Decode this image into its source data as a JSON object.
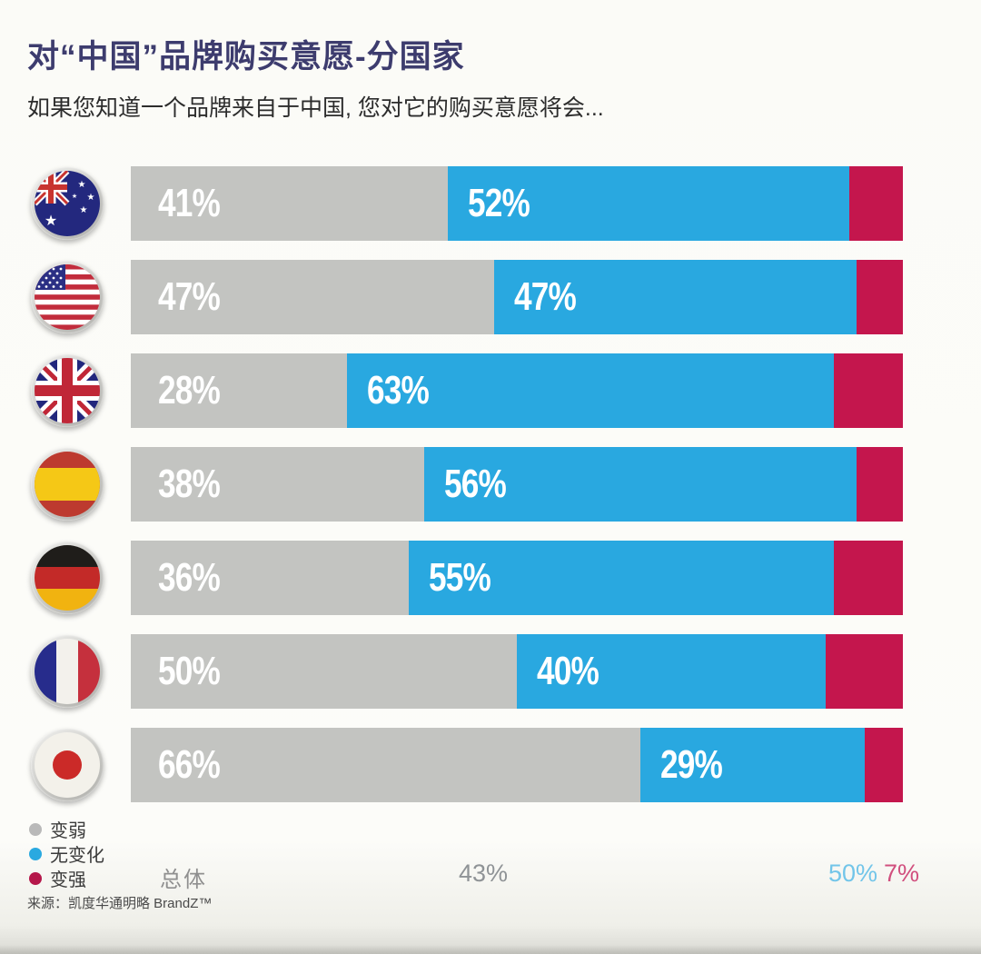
{
  "page": {
    "title": "对“中国”品牌购买意愿-分国家",
    "subtitle": "如果您知道一个品牌来自于中国, 您对它的购买意愿将会...",
    "source": "来源：凯度华通明略 BrandZ™"
  },
  "colors": {
    "title": "#3d3c6e",
    "weaken": "#c3c4c1",
    "unchanged": "#29a8e0",
    "strengthen": "#c4164d",
    "overall_weaken_text": "#8f9396",
    "overall_unchanged_text": "#72c5e9",
    "overall_strengthen_text": "#d14f7e"
  },
  "legend": [
    {
      "label": "变弱",
      "color": "#b9b9b9"
    },
    {
      "label": "无变化",
      "color": "#2aa9e0"
    },
    {
      "label": "变强",
      "color": "#b5174a"
    }
  ],
  "overall": {
    "label": "总体",
    "weaken": "43%",
    "unchanged": "50%",
    "strengthen": "7%"
  },
  "rows": [
    {
      "country": "Australia",
      "flag": "flag-australia",
      "weaken": 41,
      "unchanged": 52,
      "strengthen": 7,
      "weaken_label": "41%",
      "unchanged_label": "52%"
    },
    {
      "country": "United States",
      "flag": "flag-united-states",
      "weaken": 47,
      "unchanged": 47,
      "strengthen": 6,
      "weaken_label": "47%",
      "unchanged_label": "47%"
    },
    {
      "country": "United Kingdom",
      "flag": "flag-united-kingdom",
      "weaken": 28,
      "unchanged": 63,
      "strengthen": 9,
      "weaken_label": "28%",
      "unchanged_label": "63%"
    },
    {
      "country": "Spain",
      "flag": "flag-spain",
      "weaken": 38,
      "unchanged": 56,
      "strengthen": 6,
      "weaken_label": "38%",
      "unchanged_label": "56%"
    },
    {
      "country": "Germany",
      "flag": "flag-germany",
      "weaken": 36,
      "unchanged": 55,
      "strengthen": 9,
      "weaken_label": "36%",
      "unchanged_label": "55%"
    },
    {
      "country": "France",
      "flag": "flag-france",
      "weaken": 50,
      "unchanged": 40,
      "strengthen": 10,
      "weaken_label": "50%",
      "unchanged_label": "40%"
    },
    {
      "country": "Japan",
      "flag": "flag-japan",
      "weaken": 66,
      "unchanged": 29,
      "strengthen": 5,
      "weaken_label": "66%",
      "unchanged_label": "29%"
    }
  ],
  "chart_data": {
    "type": "bar",
    "stacked": true,
    "orientation": "horizontal",
    "title": "对“中国”品牌购买意愿-分国家",
    "subtitle": "如果您知道一个品牌来自于中国, 您对它的购买意愿将会...",
    "categories": [
      "Australia",
      "United States",
      "United Kingdom",
      "Spain",
      "Germany",
      "France",
      "Japan"
    ],
    "series": [
      {
        "name": "变弱",
        "color": "#c3c4c1",
        "values": [
          41,
          47,
          28,
          38,
          36,
          50,
          66
        ]
      },
      {
        "name": "无变化",
        "color": "#29a8e0",
        "values": [
          52,
          47,
          63,
          56,
          55,
          40,
          29
        ]
      },
      {
        "name": "变强",
        "color": "#c4164d",
        "values": [
          7,
          6,
          9,
          6,
          9,
          10,
          5
        ]
      }
    ],
    "overall": {
      "label": "总体",
      "values": {
        "变弱": 43,
        "无变化": 50,
        "变强": 7
      }
    },
    "xlim": [
      0,
      100
    ],
    "grid": false,
    "legend_position": "bottom-left",
    "value_labels": "weaken and unchanged segments labeled in-bar; strengthen segment unlabeled per row, shown only in overall row",
    "source": "来源：凯度华通明略 BrandZ™"
  }
}
